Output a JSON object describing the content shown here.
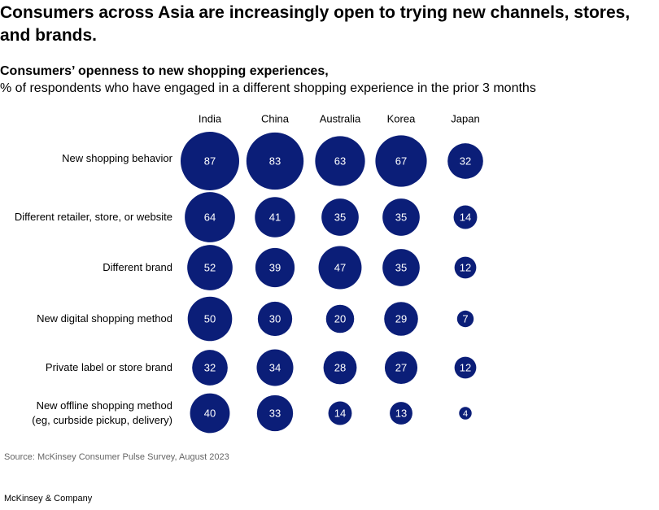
{
  "title": "Consumers across Asia are increasingly open to trying new channels, stores, and brands.",
  "chart_data": {
    "type": "bubble-grid",
    "subtitle": "Consumers’ openness to new shopping experiences,",
    "description": "% of respondents who have engaged in a different shopping experience in the prior 3 months",
    "categories": [
      "New shopping behavior",
      "Different retailer, store, or website",
      "Different brand",
      "New digital shopping method",
      "Private label or store brand",
      "New offline shopping method\n(eg, curbside pickup, delivery)"
    ],
    "series": [
      {
        "name": "India",
        "color": "#0b1e78",
        "values": [
          87,
          64,
          52,
          50,
          32,
          40
        ]
      },
      {
        "name": "China",
        "color": "#0b1e78",
        "values": [
          83,
          41,
          39,
          30,
          34,
          33
        ]
      },
      {
        "name": "Australia",
        "color": "#0b1e78",
        "values": [
          63,
          35,
          47,
          20,
          28,
          14
        ]
      },
      {
        "name": "Korea",
        "color": "#0b1e78",
        "values": [
          67,
          35,
          35,
          29,
          27,
          13
        ]
      },
      {
        "name": "Japan",
        "color": "#0b1e78",
        "values": [
          32,
          14,
          12,
          7,
          12,
          4
        ]
      }
    ],
    "source": "Source: McKinsey Consumer Pulse Survey, August 2023"
  },
  "footer": "McKinsey & Company"
}
